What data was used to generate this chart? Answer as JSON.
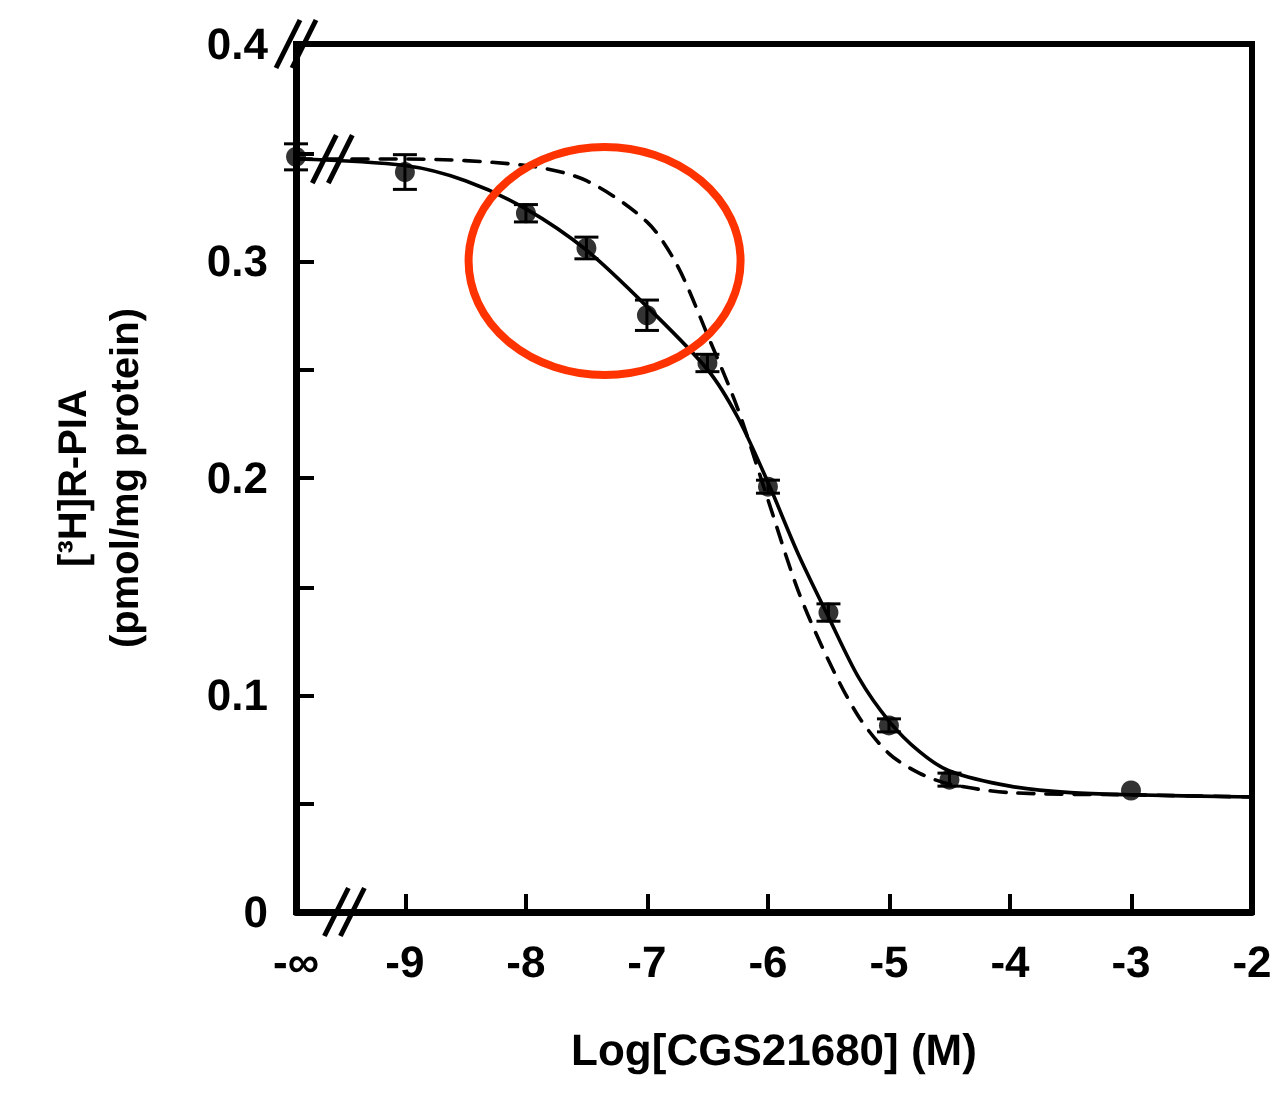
{
  "chart_data": {
    "type": "scatter",
    "xlabel": "Log[CGS21680] (M)",
    "ylabel": "[³H]R-PIA\n(pmol/mg protein)",
    "xlim": [
      -9.9,
      -2
    ],
    "xticks": [
      {
        "value": -9.9,
        "label": "-∞"
      },
      -9,
      -8,
      -7,
      -6,
      -5,
      -4,
      -3,
      -2
    ],
    "ylim": [
      0,
      0.4
    ],
    "yticks": [
      0,
      {
        "value": 0.05,
        "label": null
      },
      0.1,
      {
        "value": 0.15,
        "label": null
      },
      0.2,
      {
        "value": 0.25,
        "label": null
      },
      0.3,
      {
        "value": 0.35,
        "label": null
      },
      0.4
    ],
    "grid": false,
    "series": [
      {
        "type": "scatter",
        "color": "#000000",
        "marker": "circle",
        "x": [
          -9.9,
          -9,
          -8,
          -7.5,
          -7,
          -6.5,
          -6,
          -5.5,
          -5,
          -4.5,
          -3
        ],
        "values": [
          0.348,
          0.341,
          0.322,
          0.306,
          0.275,
          0.253,
          0.196,
          0.138,
          0.086,
          0.061,
          0.056
        ],
        "errors": [
          0.006,
          0.008,
          0.004,
          0.005,
          0.007,
          0.004,
          0.003,
          0.004,
          0.003,
          0.003,
          null
        ]
      },
      {
        "type": "line",
        "color": "#000000",
        "marker": "none",
        "line_style": "solid",
        "x": [
          -9.9,
          -9,
          -8.5,
          -8,
          -7.5,
          -7,
          -6.5,
          -6.25,
          -6,
          -5.75,
          -5.5,
          -5.25,
          -5,
          -4.75,
          -4.5,
          -4,
          -3.5,
          -3,
          -2
        ],
        "values": [
          0.347,
          0.344,
          0.337,
          0.324,
          0.305,
          0.279,
          0.25,
          0.228,
          0.198,
          0.165,
          0.136,
          0.108,
          0.088,
          0.074,
          0.065,
          0.058,
          0.055,
          0.054,
          0.053
        ]
      },
      {
        "type": "line",
        "color": "#000000",
        "marker": "none",
        "line_style": "dashed",
        "x": [
          -9.9,
          -9,
          -8,
          -7.5,
          -7,
          -6.75,
          -6.5,
          -6.25,
          -6,
          -5.75,
          -5.5,
          -5.25,
          -5,
          -4.75,
          -4.5,
          -4,
          -3,
          -2
        ],
        "values": [
          0.347,
          0.347,
          0.344,
          0.337,
          0.318,
          0.298,
          0.266,
          0.232,
          0.19,
          0.148,
          0.116,
          0.09,
          0.073,
          0.064,
          0.059,
          0.055,
          0.054,
          0.053
        ]
      }
    ]
  }
}
